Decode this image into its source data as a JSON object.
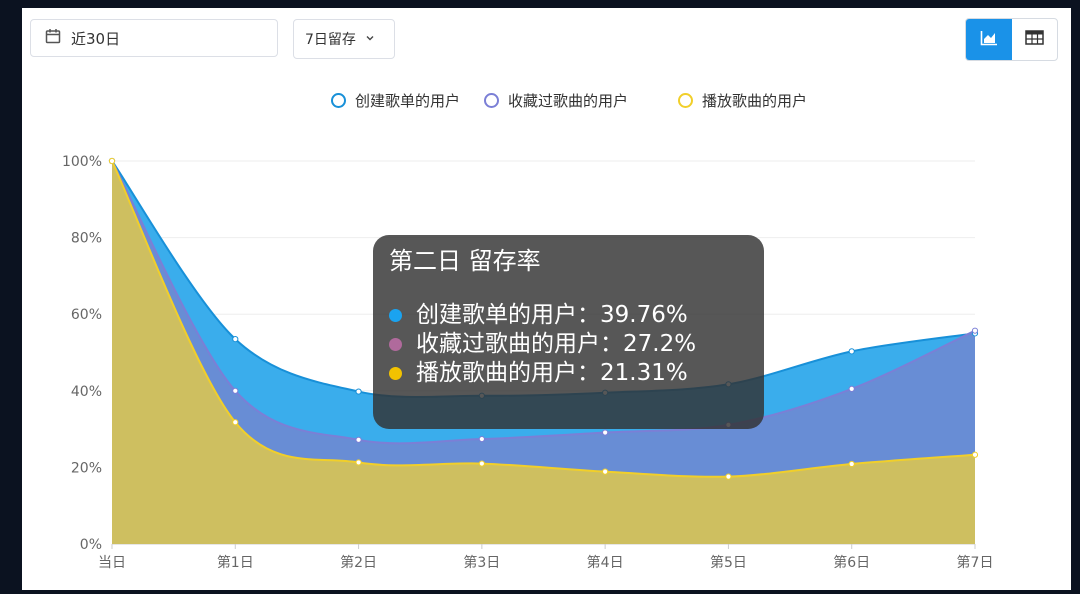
{
  "toolbar": {
    "date_range_label": "近30日",
    "retention_select_value": "7日留存",
    "chart_view_icon": "area-chart-icon",
    "table_view_icon": "table-icon",
    "calendar_icon": "calendar-icon",
    "chevron_icon": "chevron-down-icon",
    "active_view": "chart"
  },
  "tooltip": {
    "title": "第二日 留存率",
    "rows": [
      {
        "label": "创建歌单的用户：39.76%",
        "color": "#1aa3f0"
      },
      {
        "label": "收藏过歌曲的用户：27.2%",
        "color": "#b06a9c"
      },
      {
        "label": "播放歌曲的用户：21.31%",
        "color": "#f2c200"
      }
    ]
  },
  "chart_data": {
    "type": "area",
    "categories": [
      "当日",
      "第1日",
      "第2日",
      "第3日",
      "第4日",
      "第5日",
      "第6日",
      "第7日"
    ],
    "ylim": [
      0,
      100
    ],
    "y_ticks": [
      "0%",
      "20%",
      "40%",
      "60%",
      "80%",
      "100%"
    ],
    "grid": true,
    "legend_position": "top-center",
    "series": [
      {
        "name": "创建歌单的用户",
        "stroke": "#1890d8",
        "fill": "#2fa9eb",
        "values": [
          100,
          53.5,
          39.8,
          38.7,
          39.5,
          41.7,
          50.3,
          55.0
        ]
      },
      {
        "name": "收藏过歌曲的用户",
        "stroke": "#7b7fd6",
        "fill": "#6a8bd4",
        "values": [
          100,
          40.0,
          27.2,
          27.4,
          29.1,
          31.1,
          40.5,
          55.7
        ]
      },
      {
        "name": "播放歌曲的用户",
        "stroke": "#f1cf2a",
        "fill": "#d4c25a",
        "values": [
          100,
          31.8,
          21.3,
          21.0,
          18.9,
          17.6,
          20.9,
          23.3
        ]
      }
    ]
  }
}
